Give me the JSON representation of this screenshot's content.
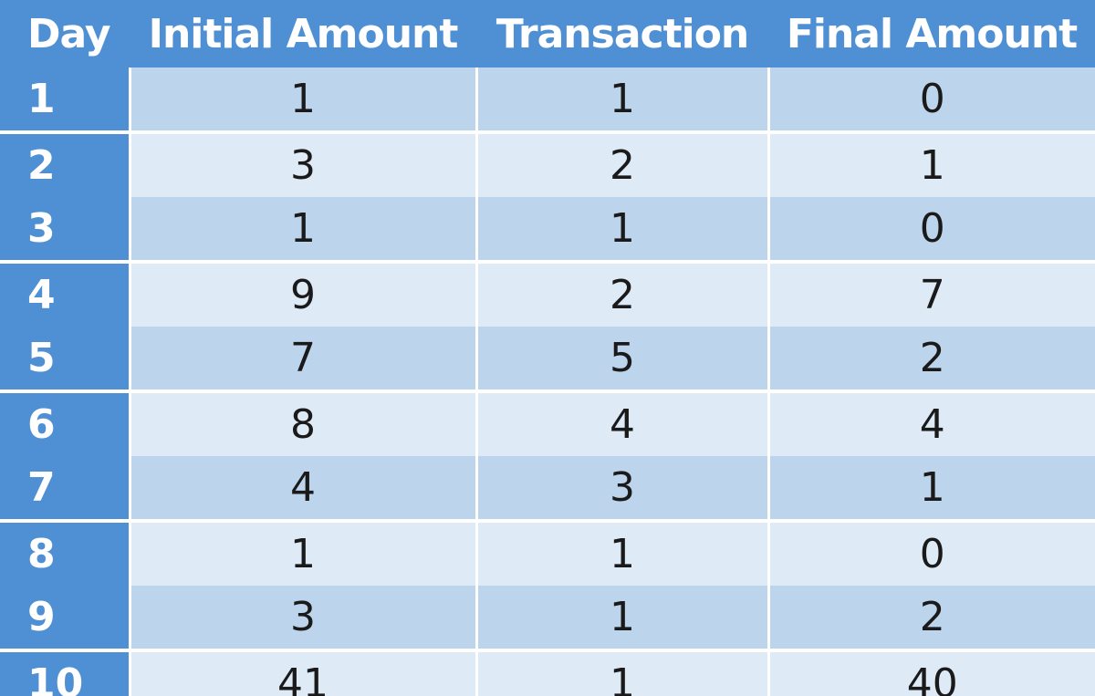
{
  "table": {
    "headers": [
      "Day",
      "Initial Amount",
      "Transaction",
      "Final Amount"
    ],
    "rows": [
      {
        "day": "1",
        "initial": "1",
        "transaction": "1",
        "final": "0"
      },
      {
        "day": "2",
        "initial": "3",
        "transaction": "2",
        "final": "1"
      },
      {
        "day": "3",
        "initial": "1",
        "transaction": "1",
        "final": "0"
      },
      {
        "day": "4",
        "initial": "9",
        "transaction": "2",
        "final": "7"
      },
      {
        "day": "5",
        "initial": "7",
        "transaction": "5",
        "final": "2"
      },
      {
        "day": "6",
        "initial": "8",
        "transaction": "4",
        "final": "4"
      },
      {
        "day": "7",
        "initial": "4",
        "transaction": "3",
        "final": "1"
      },
      {
        "day": "8",
        "initial": "1",
        "transaction": "1",
        "final": "0"
      },
      {
        "day": "9",
        "initial": "3",
        "transaction": "1",
        "final": "2"
      },
      {
        "day": "10",
        "initial": "41",
        "transaction": "1",
        "final": "40"
      }
    ]
  },
  "colors": {
    "header_bg": "#4f8fd4",
    "row_dark": "#bcd4ec",
    "row_light": "#deeaf6"
  }
}
